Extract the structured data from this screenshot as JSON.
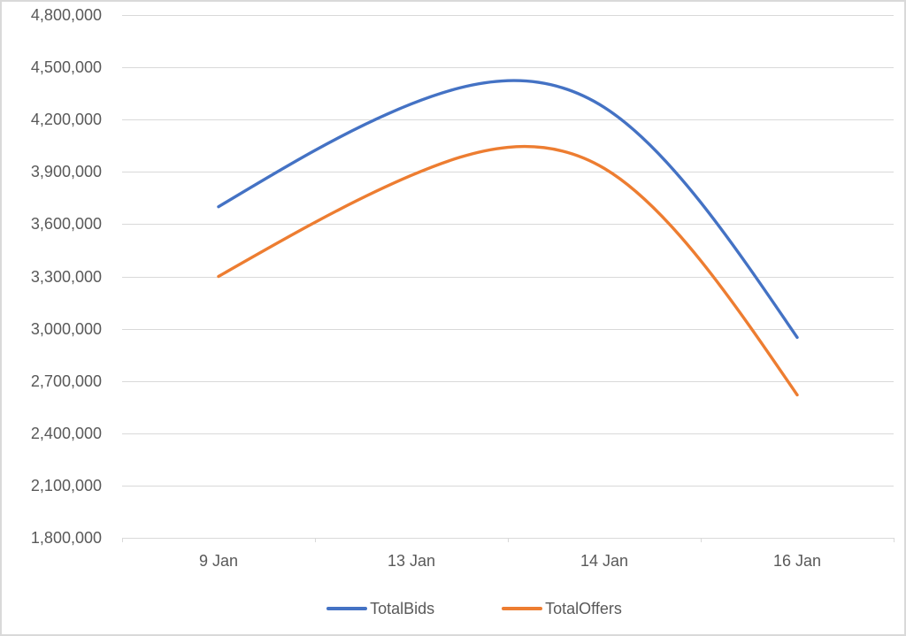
{
  "chart_data": {
    "type": "line",
    "title": "",
    "line_style": "smooth",
    "grid": true,
    "x_categories": [
      "9 Jan",
      "13 Jan",
      "14 Jan",
      "16 Jan"
    ],
    "series": [
      {
        "name": "TotalBids",
        "color": "#4472C4",
        "values": [
          3700000,
          4290000,
          4270000,
          2950000
        ]
      },
      {
        "name": "TotalOffers",
        "color": "#ED7D31",
        "values": [
          3300000,
          3880000,
          3920000,
          2620000
        ]
      }
    ],
    "y_axis": {
      "min": 1800000,
      "max": 4800000,
      "step": 300000,
      "tick_values": [
        4800000,
        4500000,
        4200000,
        3900000,
        3600000,
        3300000,
        3000000,
        2700000,
        2400000,
        2100000,
        1800000
      ],
      "tick_labels": [
        "4,800,000",
        "4,500,000",
        "4,200,000",
        "3,900,000",
        "3,600,000",
        "3,300,000",
        "3,000,000",
        "2,700,000",
        "2,400,000",
        "2,100,000",
        "1,800,000"
      ]
    },
    "legend": {
      "position": "bottom",
      "entries": [
        "TotalBids",
        "TotalOffers"
      ]
    },
    "colors": {
      "gridline": "#D9D9D9",
      "axis": "#D9D9D9",
      "tick_text": "#595959",
      "frame_border": "#D9D9D9"
    }
  }
}
